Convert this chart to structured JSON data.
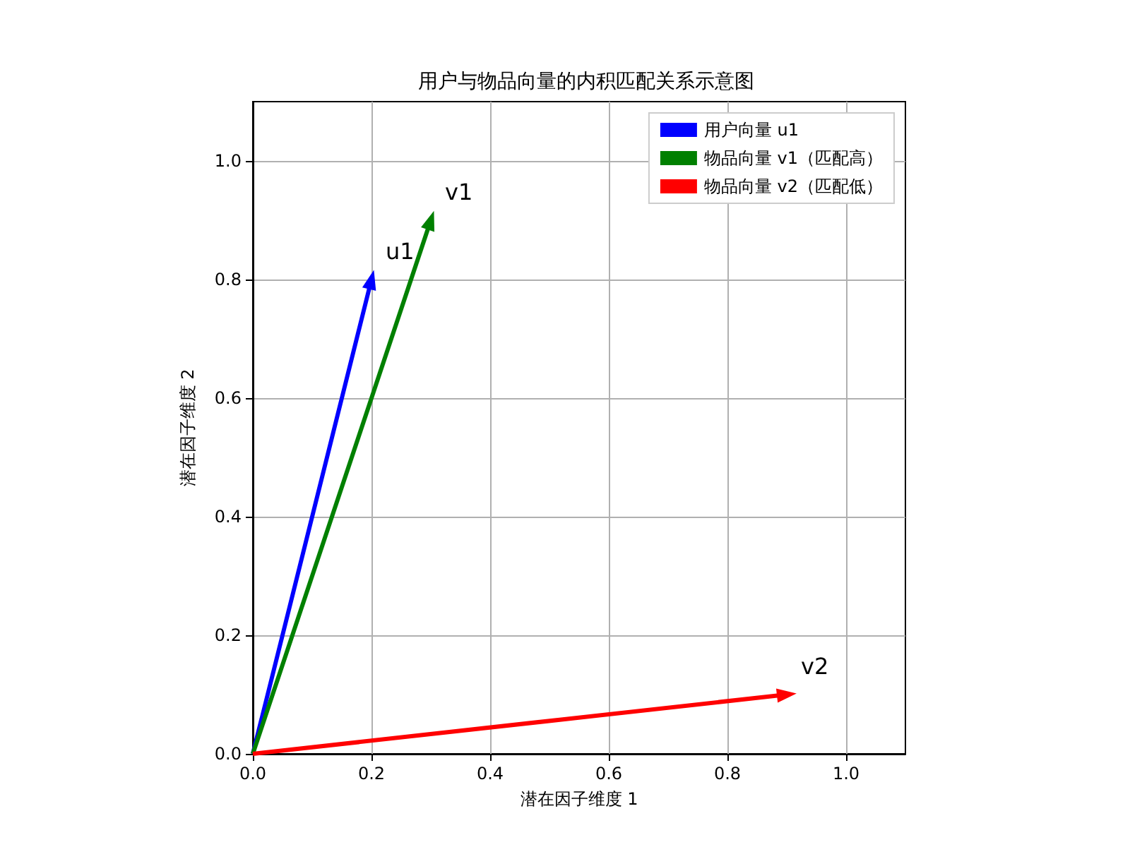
{
  "chart_data": {
    "type": "line",
    "title": "用户与物品向量的内积匹配关系示意图",
    "xlabel": "潜在因子维度 1",
    "ylabel": "潜在因子维度 2",
    "series": [
      {
        "name": "用户向量 u1",
        "color": "#0000ff",
        "x": [
          0,
          0.2
        ],
        "values": [
          0,
          0.8
        ]
      },
      {
        "name": "物品向量 v1（匹配高）",
        "color": "#008000",
        "x": [
          0,
          0.3
        ],
        "values": [
          0,
          0.9
        ]
      },
      {
        "name": "物品向量 v2（匹配低）",
        "color": "#ff0000",
        "x": [
          0,
          0.9
        ],
        "values": [
          0,
          0.1
        ]
      }
    ],
    "annotations": [
      {
        "text": "u1",
        "x": 0.2,
        "y": 0.8
      },
      {
        "text": "v1",
        "x": 0.3,
        "y": 0.9
      },
      {
        "text": "v2",
        "x": 0.9,
        "y": 0.1
      }
    ],
    "xlim": [
      0,
      1.1
    ],
    "ylim": [
      0,
      1.1
    ],
    "xticks": [
      {
        "value": 0,
        "label": "0.0"
      },
      0.2,
      0.4,
      0.6,
      0.8,
      {
        "value": 1,
        "label": "1.0"
      }
    ],
    "yticks": [
      {
        "value": 0,
        "label": "0.0"
      },
      0.2,
      0.4,
      0.6,
      0.8,
      {
        "value": 1,
        "label": "1.0"
      }
    ],
    "grid": true,
    "legend": "top right"
  }
}
